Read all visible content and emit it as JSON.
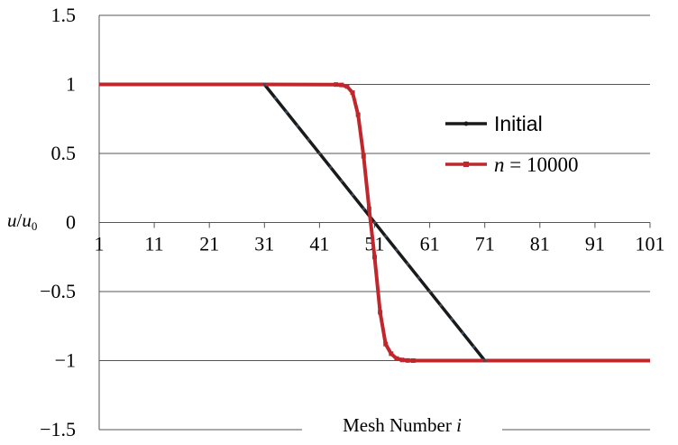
{
  "chart_data": {
    "type": "line",
    "xlabel": "Mesh Number i",
    "xlabel_main": "Mesh Number ",
    "xlabel_var": "i",
    "ylabel_var": "u",
    "ylabel_sep": "/",
    "ylabel_denom": "u",
    "ylabel_sub": "0",
    "xlim": [
      1,
      101
    ],
    "ylim": [
      -1.5,
      1.5
    ],
    "x_ticks": [
      1,
      11,
      21,
      31,
      41,
      51,
      61,
      71,
      81,
      91,
      101
    ],
    "x_tick_labels": [
      "1",
      "11",
      "21",
      "31",
      "41",
      "51",
      "61",
      "71",
      "81",
      "91",
      "101"
    ],
    "y_ticks": [
      1.5,
      1,
      0.5,
      0,
      -0.5,
      -1,
      -1.5
    ],
    "y_tick_labels": [
      "1.5",
      "1",
      "0.5",
      "0",
      "−0.5",
      "−1",
      "−1.5"
    ],
    "grid": true,
    "legend_position": "right",
    "series": [
      {
        "name": "Initial",
        "color": "#1a1a1a",
        "x": [
          1,
          31,
          71,
          101
        ],
        "y": [
          1,
          1,
          -1,
          -1
        ]
      },
      {
        "name_var": "n",
        "name_rest": " = 10000",
        "color": "#c0272d",
        "x": [
          1,
          30,
          44,
          45,
          46,
          47,
          48,
          49,
          50,
          51,
          52,
          53,
          54,
          55,
          56,
          57,
          58,
          101
        ],
        "y": [
          1,
          1,
          0.999,
          0.996,
          0.985,
          0.94,
          0.78,
          0.48,
          0.1,
          -0.25,
          -0.65,
          -0.88,
          -0.95,
          -0.985,
          -0.995,
          -0.999,
          -1,
          -1
        ]
      }
    ]
  }
}
